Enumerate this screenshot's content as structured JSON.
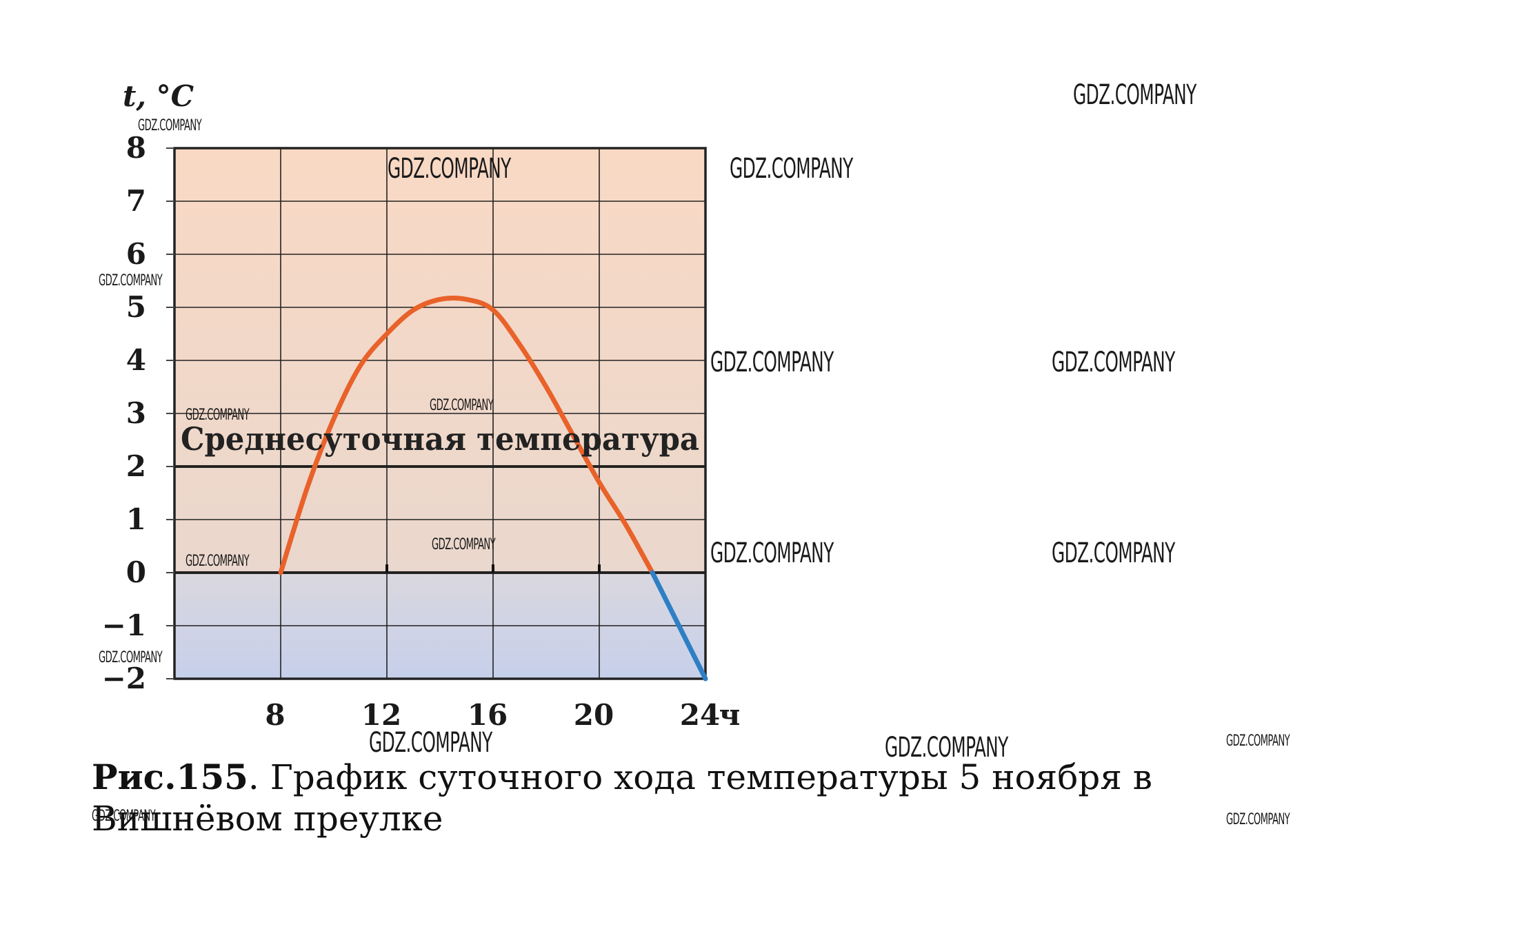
{
  "chart_data": {
    "type": "line",
    "ylabel": "t, °C",
    "xunit": "ч",
    "ylim": [
      -2,
      8
    ],
    "xlim": [
      4,
      24
    ],
    "x_ticks": [
      "8",
      "12",
      "16",
      "20",
      "24"
    ],
    "y_ticks": [
      "8",
      "7",
      "6",
      "5",
      "4",
      "3",
      "2",
      "1",
      "0",
      "−1",
      "−2"
    ],
    "grid": true,
    "series": [
      {
        "color": "#e8622a",
        "x": [
          8,
          9,
          10,
          11,
          12,
          13,
          14,
          15,
          16,
          17,
          18,
          19,
          20,
          21,
          22
        ],
        "values": [
          0,
          1.6,
          2.9,
          3.9,
          4.5,
          4.95,
          5.15,
          5.15,
          4.95,
          4.3,
          3.5,
          2.6,
          1.7,
          0.9,
          0
        ]
      },
      {
        "color": "#2e7fc4",
        "x": [
          22,
          24
        ],
        "values": [
          0,
          -2
        ]
      }
    ],
    "reference_line": {
      "value": 2,
      "label": "Среднесуточная температура"
    },
    "background": {
      "warm": "#f9d9c4",
      "cold": "#c6d0ea"
    }
  },
  "caption": {
    "label": "Рис.155",
    "text": ". График суточного хода температуры 5 ноября в Вишнёвом преулке"
  },
  "watermark": "GDZ.COMPANY"
}
